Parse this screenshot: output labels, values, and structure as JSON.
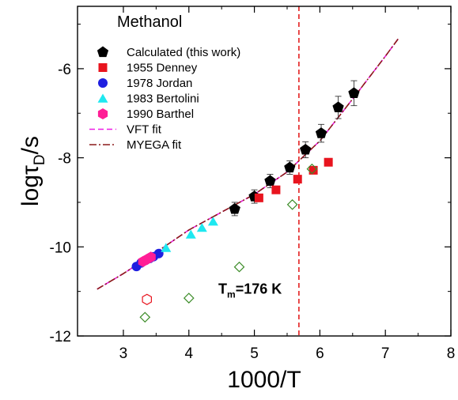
{
  "chart_data": {
    "type": "scatter",
    "title": "",
    "xlabel": "1000/T",
    "ylabel": "logτD/s",
    "ylabel_parts": {
      "main": "logτ",
      "sub": "D",
      "tail": "/s"
    },
    "xlim": [
      2.3,
      8
    ],
    "ylim": [
      -12,
      -4.6
    ],
    "xticks": [
      3,
      4,
      5,
      6,
      7,
      8
    ],
    "yticks": [
      -6,
      -8,
      -10,
      -12
    ],
    "grid": false,
    "legend_title": "Methanol",
    "legend_position": "top-left",
    "annotation": {
      "text": "Tm=176 K",
      "main": "T",
      "sub": "m",
      "tail": "=176 K",
      "x": 4.45,
      "y": -11.05
    },
    "vline": {
      "x": 5.68,
      "color": "#e32020",
      "style": "dashed"
    },
    "series": [
      {
        "name": "Calculated (this work)",
        "marker": "pentagon",
        "color": "#000000",
        "x": [
          4.7,
          5.0,
          5.24,
          5.54,
          5.78,
          6.02,
          6.28,
          6.52
        ],
        "y": [
          -9.15,
          -8.87,
          -8.52,
          -8.22,
          -7.82,
          -7.45,
          -6.87,
          -6.55
        ],
        "err": [
          0.15,
          0.15,
          0.15,
          0.15,
          0.18,
          0.2,
          0.25,
          0.28
        ]
      },
      {
        "name": "1955 Denney",
        "marker": "square",
        "color": "#e8141e",
        "x": [
          5.07,
          5.33,
          5.66,
          5.9,
          6.13
        ],
        "y": [
          -8.9,
          -8.72,
          -8.48,
          -8.28,
          -8.1
        ]
      },
      {
        "name": "1978 Jordan",
        "marker": "circle",
        "color": "#1f1fe0",
        "x": [
          3.2,
          3.27,
          3.34,
          3.4,
          3.46,
          3.54
        ],
        "y": [
          -10.44,
          -10.36,
          -10.3,
          -10.26,
          -10.22,
          -10.15
        ]
      },
      {
        "name": "1983 Bertolini",
        "marker": "triangle",
        "color": "#1ee8f0",
        "x": [
          3.65,
          4.03,
          4.2,
          4.37
        ],
        "y": [
          -10.02,
          -9.72,
          -9.57,
          -9.43
        ]
      },
      {
        "name": "1990 Barthel",
        "marker": "hexagon",
        "color": "#ff1e96",
        "x": [
          3.3,
          3.36,
          3.42
        ],
        "y": [
          -10.33,
          -10.28,
          -10.23
        ]
      },
      {
        "name": "open hexagon",
        "marker": "open-hexagon",
        "color": "#e8141e",
        "x": [
          3.36
        ],
        "y": [
          -11.18
        ]
      },
      {
        "name": "open diamond",
        "marker": "open-diamond",
        "color": "#3c8c28",
        "x": [
          3.33,
          4.0,
          4.77,
          5.58,
          5.88
        ],
        "y": [
          -11.58,
          -11.15,
          -10.45,
          -9.05,
          -8.25
        ]
      }
    ],
    "fits": [
      {
        "name": "VFT fit",
        "style": "dashed",
        "color": "#ee1ee6",
        "x": [
          2.6,
          3.0,
          3.5,
          4.0,
          4.5,
          5.0,
          5.5,
          6.0,
          6.5,
          7.0,
          7.2
        ],
        "y": [
          -10.95,
          -10.6,
          -10.12,
          -9.62,
          -9.22,
          -8.82,
          -8.32,
          -7.62,
          -6.68,
          -5.72,
          -5.32
        ]
      },
      {
        "name": "MYEGA fit",
        "style": "dashdot",
        "color": "#8b1a1a",
        "x": [
          2.6,
          3.0,
          3.5,
          4.0,
          4.5,
          5.0,
          5.5,
          6.0,
          6.5,
          7.0,
          7.2
        ],
        "y": [
          -10.95,
          -10.6,
          -10.12,
          -9.62,
          -9.22,
          -8.82,
          -8.32,
          -7.62,
          -6.68,
          -5.72,
          -5.32
        ]
      }
    ]
  }
}
